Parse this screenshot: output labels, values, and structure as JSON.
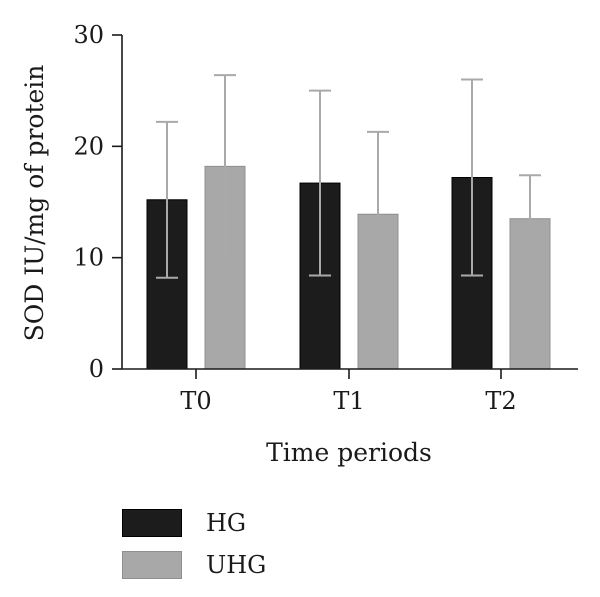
{
  "chart_data": {
    "type": "bar",
    "title": "",
    "xlabel": "Time periods",
    "ylabel": "SOD IU/mg of protein",
    "categories": [
      "T0",
      "T1",
      "T2"
    ],
    "ylim": [
      0,
      30
    ],
    "yticks": [
      0,
      10,
      20,
      30
    ],
    "error_bars": true,
    "legend_position": "bottom-left",
    "series": [
      {
        "name": "HG",
        "color": "#1c1c1c",
        "values": [
          15.2,
          16.7,
          17.2
        ],
        "errors": [
          7.0,
          8.3,
          8.8
        ]
      },
      {
        "name": "UHG",
        "color": "#a8a8a8",
        "values": [
          18.2,
          13.9,
          13.5
        ],
        "errors": [
          8.2,
          7.4,
          3.9
        ]
      }
    ]
  }
}
